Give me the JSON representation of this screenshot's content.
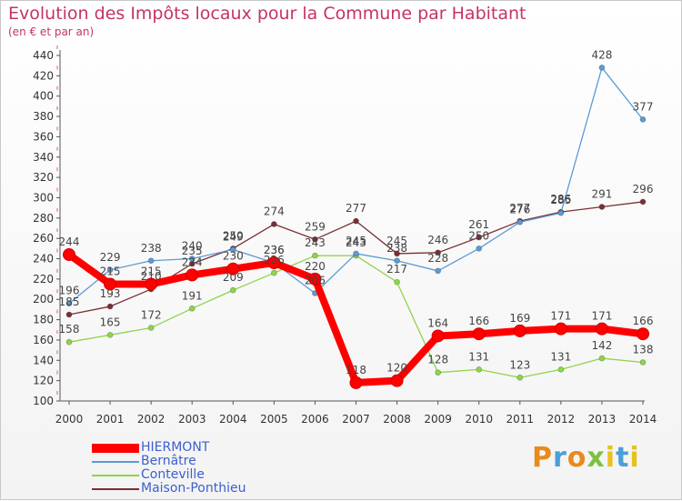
{
  "title": "Evolution des Impôts locaux pour la Commune par Habitant",
  "subtitle": "(en € et par an)",
  "logo": {
    "text": "Proxiti",
    "colors": [
      "#e88a1e",
      "#4a9fd6",
      "#e88a1e",
      "#7bc23f",
      "#e6c31a",
      "#4a9fd6",
      "#e6c31a"
    ]
  },
  "chart_data": {
    "type": "line",
    "x": [
      "2000",
      "2001",
      "2002",
      "2003",
      "2004",
      "2005",
      "2006",
      "2007",
      "2008",
      "2009",
      "2010",
      "2011",
      "2012",
      "2013",
      "2014"
    ],
    "ylim": [
      100,
      440
    ],
    "yticks": [
      100,
      120,
      140,
      160,
      180,
      200,
      220,
      240,
      260,
      280,
      300,
      320,
      340,
      360,
      380,
      400,
      420,
      440
    ],
    "grid": false,
    "legend_position": "bottom-left",
    "series": [
      {
        "name": "HIERMONT",
        "color": "#ff0000",
        "values": [
          244,
          215,
          215,
          224,
          230,
          236,
          220,
          118,
          120,
          164,
          166,
          169,
          171,
          171,
          166
        ]
      },
      {
        "name": "Bernâtre",
        "color": "#5b9bd5",
        "values": [
          196,
          229,
          238,
          240,
          249,
          236,
          206,
          245,
          238,
          228,
          250,
          276,
          285,
          428,
          377
        ]
      },
      {
        "name": "Conteville",
        "color": "#8fd44a",
        "values": [
          158,
          165,
          172,
          191,
          209,
          226,
          243,
          243,
          217,
          128,
          131,
          123,
          131,
          142,
          138
        ]
      },
      {
        "name": "Maison-Ponthieu",
        "color": "#7a2f35",
        "values": [
          185,
          193,
          210,
          235,
          250,
          274,
          259,
          277,
          245,
          246,
          261,
          277,
          286,
          291,
          296
        ]
      }
    ]
  }
}
